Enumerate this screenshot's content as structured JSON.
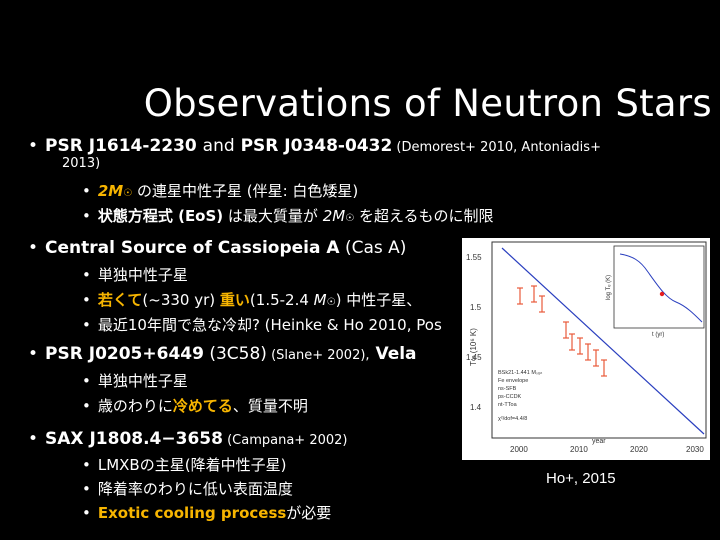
{
  "slide": {
    "title": "Observations of Neutron Stars",
    "item1": {
      "bullet": "•",
      "lead": "PSR J1614-2230 ",
      "and": "and",
      "lead2": " PSR J0348-0432",
      "ref": " (Demorest+ 2010, Antoniadis+",
      "ref2": "2013)",
      "sub1": {
        "mass": "2M",
        "sun": "☉",
        "text": " の連星中性子星 (伴星: 白色矮星)"
      },
      "sub2": {
        "b": "状態方程式 (EoS)",
        "t1": " は最大質量が ",
        "mass": "2M",
        "sun": "☉",
        "t2": " を超えるものに制限"
      }
    },
    "item2": {
      "bullet": "•",
      "lead": "Central Source of Cassiopeia A",
      "rest": " (Cas A)",
      "sub1": "単独中性子星",
      "sub2": {
        "a": "若くて",
        "b": "(~330 yr) ",
        "c": "重い",
        "d": "(1.5-2.4 ",
        "mass": "M",
        "sun": "☉",
        "e": ") 中性子星、"
      },
      "sub3": {
        "a": "最近10年間で急な冷却? (Heinke & Ho 2010, Pos"
      }
    },
    "item3": {
      "bullet": "•",
      "lead": "PSR J0205+6449",
      "mid": " (3C58)",
      "ref": " (Slane+ 2002),",
      "vela": " Vela",
      "sub1": "単独中性子星",
      "sub2": {
        "a": "歳のわりに",
        "b": "冷めてる",
        "c": "、質量不明"
      }
    },
    "item4": {
      "bullet": "•",
      "lead": "SAX J1808.4−3658",
      "ref": " (Campana+ 2002)",
      "sub1": "LMXBの主星(降着中性子星)",
      "sub2": "降着率のわりに低い表面温度",
      "sub3": {
        "a": "Exotic cooling process",
        "b": "が必要"
      }
    },
    "figure_caption": "Ho+, 2015"
  },
  "figure": {
    "ytick_labels": [
      "1.55",
      "1.5",
      "1.45",
      "1.4"
    ],
    "xtick_labels": [
      "2000",
      "2010",
      "2020",
      "2030"
    ],
    "xlabel": "year",
    "legend": [
      "BSk21-1.441 Mₛᵤₙ",
      "Fe envelope",
      "ns-SFB",
      "ps-CCDK",
      "nt-TToa",
      "χ²/dof=4.4/8"
    ],
    "inset_xlabel": "t (yr)",
    "inset_ylabel": "log Tₑ (K)",
    "colors": {
      "model_line": "#2a3fbf",
      "data": "#e85a3a",
      "highlight": "#f7b500"
    }
  }
}
